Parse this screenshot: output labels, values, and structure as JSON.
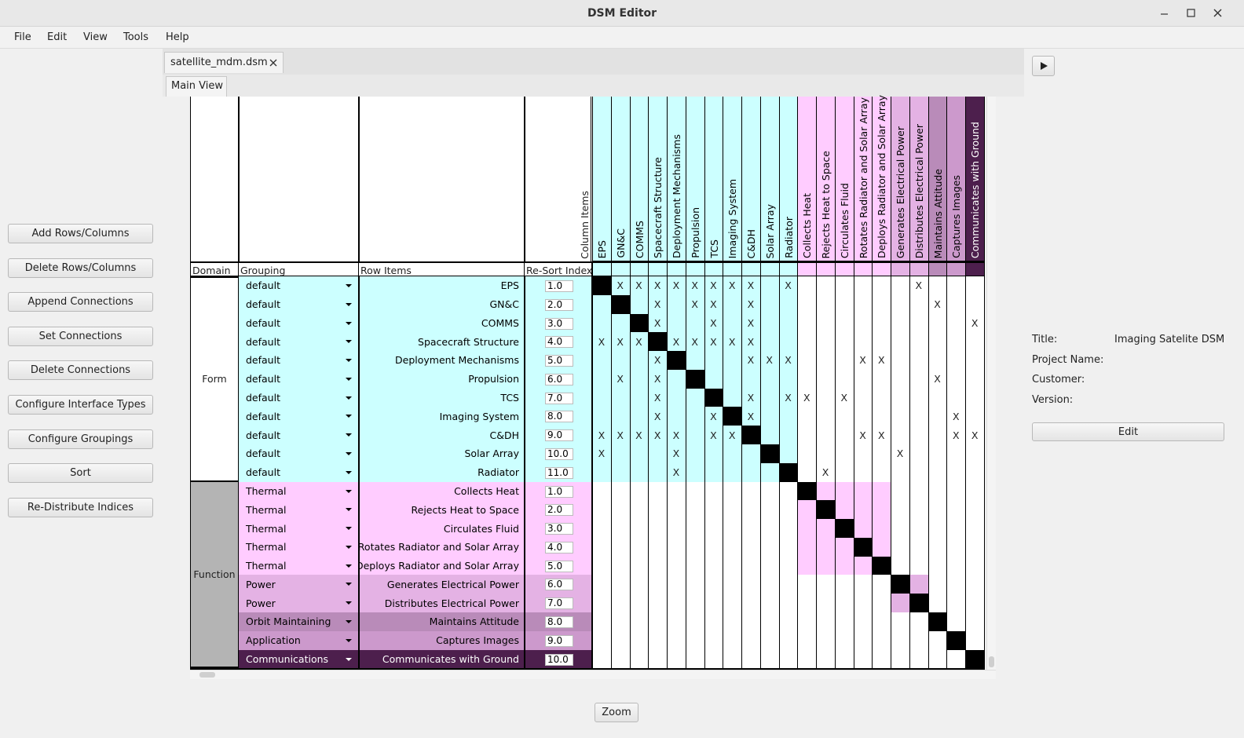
{
  "window": {
    "title": "DSM Editor"
  },
  "menu": [
    "File",
    "Edit",
    "View",
    "Tools",
    "Help"
  ],
  "actions": [
    "Add Rows/Columns",
    "Delete Rows/Columns",
    "Append Connections",
    "Set Connections",
    "Delete Connections",
    "Configure Interface Types",
    "Configure Groupings",
    "Sort",
    "Re-Distribute Indices"
  ],
  "tabs": {
    "file": "satellite_mdm.dsm",
    "view": "Main View"
  },
  "matrix": {
    "headers": {
      "column_items": "Column Items",
      "domain": "Domain",
      "grouping": "Grouping",
      "row_items": "Row Items",
      "resort_index": "Re-Sort Index"
    },
    "connection_mark": "X",
    "groupings": [
      {
        "name": "default",
        "color": "#ccffff",
        "text_color": "#000000"
      },
      {
        "name": "Thermal",
        "color": "#ffccff",
        "text_color": "#000000"
      },
      {
        "name": "Power",
        "color": "#e4b2e4",
        "text_color": "#000000"
      },
      {
        "name": "Orbit Maintaining",
        "color": "#b98bb9",
        "text_color": "#000000"
      },
      {
        "name": "Application",
        "color": "#cc99cc",
        "text_color": "#000000"
      },
      {
        "name": "Communications",
        "color": "#4d1f4d",
        "text_color": "#ffffff"
      }
    ],
    "domains": [
      {
        "name": "Form",
        "color": "#ffffff"
      },
      {
        "name": "Function",
        "color": "#b4b4b4"
      }
    ],
    "items": [
      {
        "name": "EPS",
        "grouping": 0,
        "domain": 0,
        "index": "1.0",
        "connections": [
          1,
          2,
          3,
          4,
          5,
          6,
          7,
          8,
          10,
          17
        ]
      },
      {
        "name": "GN&C",
        "grouping": 0,
        "domain": 0,
        "index": "2.0",
        "connections": [
          3,
          5,
          6,
          8,
          18
        ]
      },
      {
        "name": "COMMS",
        "grouping": 0,
        "domain": 0,
        "index": "3.0",
        "connections": [
          3,
          6,
          8,
          20
        ]
      },
      {
        "name": "Spacecraft Structure",
        "grouping": 0,
        "domain": 0,
        "index": "4.0",
        "connections": [
          0,
          1,
          2,
          4,
          5,
          6,
          7,
          8
        ]
      },
      {
        "name": "Deployment Mechanisms",
        "grouping": 0,
        "domain": 0,
        "index": "5.0",
        "connections": [
          3,
          8,
          9,
          10,
          14,
          15
        ]
      },
      {
        "name": "Propulsion",
        "grouping": 0,
        "domain": 0,
        "index": "6.0",
        "connections": [
          1,
          3,
          18
        ]
      },
      {
        "name": "TCS",
        "grouping": 0,
        "domain": 0,
        "index": "7.0",
        "connections": [
          3,
          8,
          10,
          11,
          13
        ]
      },
      {
        "name": "Imaging System",
        "grouping": 0,
        "domain": 0,
        "index": "8.0",
        "connections": [
          3,
          6,
          8,
          19
        ]
      },
      {
        "name": "C&DH",
        "grouping": 0,
        "domain": 0,
        "index": "9.0",
        "connections": [
          0,
          1,
          2,
          3,
          4,
          6,
          7,
          14,
          15,
          19,
          20
        ]
      },
      {
        "name": "Solar Array",
        "grouping": 0,
        "domain": 0,
        "index": "10.0",
        "connections": [
          0,
          4,
          16
        ]
      },
      {
        "name": "Radiator",
        "grouping": 0,
        "domain": 0,
        "index": "11.0",
        "connections": [
          4,
          12
        ]
      },
      {
        "name": "Collects Heat",
        "grouping": 1,
        "domain": 1,
        "index": "1.0",
        "connections": []
      },
      {
        "name": "Rejects Heat to Space",
        "grouping": 1,
        "domain": 1,
        "index": "2.0",
        "connections": []
      },
      {
        "name": "Circulates Fluid",
        "grouping": 1,
        "domain": 1,
        "index": "3.0",
        "connections": []
      },
      {
        "name": "Rotates Radiator and Solar Array",
        "grouping": 1,
        "domain": 1,
        "index": "4.0",
        "connections": []
      },
      {
        "name": "Deploys Radiator and Solar Array",
        "grouping": 1,
        "domain": 1,
        "index": "5.0",
        "connections": []
      },
      {
        "name": "Generates Electrical Power",
        "grouping": 2,
        "domain": 1,
        "index": "6.0",
        "connections": []
      },
      {
        "name": "Distributes Electrical Power",
        "grouping": 2,
        "domain": 1,
        "index": "7.0",
        "connections": []
      },
      {
        "name": "Maintains Attitude",
        "grouping": 3,
        "domain": 1,
        "index": "8.0",
        "connections": []
      },
      {
        "name": "Captures Images",
        "grouping": 4,
        "domain": 1,
        "index": "9.0",
        "connections": []
      },
      {
        "name": "Communicates with Ground",
        "grouping": 5,
        "domain": 1,
        "index": "10.0",
        "connections": []
      }
    ]
  },
  "properties": [
    {
      "label": "Title:",
      "value": "Imaging Satelite DSM"
    },
    {
      "label": "Project Name:"
    },
    {
      "label": "Customer:"
    },
    {
      "label": "Version:"
    }
  ],
  "buttons": {
    "edit": "Edit",
    "zoom": "Zoom"
  }
}
